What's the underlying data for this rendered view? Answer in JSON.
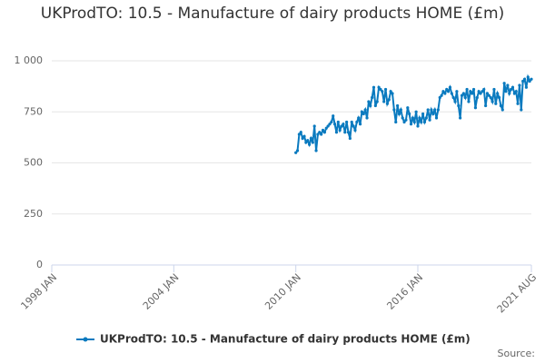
{
  "chart_data": {
    "type": "line",
    "title": "UKProdTO: 10.5 - Manufacture of dairy products HOME (£m)",
    "x": [
      "2010 JAN",
      "2010 FEB",
      "2010 MAR",
      "2010 APR",
      "2010 MAY",
      "2010 JUN",
      "2010 JUL",
      "2010 AUG",
      "2010 SEP",
      "2010 OCT",
      "2010 NOV",
      "2010 DEC",
      "2011 JAN",
      "2011 FEB",
      "2011 MAR",
      "2011 APR",
      "2011 MAY",
      "2011 JUN",
      "2011 JUL",
      "2011 AUG",
      "2011 SEP",
      "2011 OCT",
      "2011 NOV",
      "2011 DEC",
      "2012 JAN",
      "2012 FEB",
      "2012 MAR",
      "2012 APR",
      "2012 MAY",
      "2012 JUN",
      "2012 JUL",
      "2012 AUG",
      "2012 SEP",
      "2012 OCT",
      "2012 NOV",
      "2012 DEC",
      "2013 JAN",
      "2013 FEB",
      "2013 MAR",
      "2013 APR",
      "2013 MAY",
      "2013 JUN",
      "2013 JUL",
      "2013 AUG",
      "2013 SEP",
      "2013 OCT",
      "2013 NOV",
      "2013 DEC",
      "2014 JAN",
      "2014 FEB",
      "2014 MAR",
      "2014 APR",
      "2014 MAY",
      "2014 JUN",
      "2014 JUL",
      "2014 AUG",
      "2014 SEP",
      "2014 OCT",
      "2014 NOV",
      "2014 DEC",
      "2015 JAN",
      "2015 FEB",
      "2015 MAR",
      "2015 APR",
      "2015 MAY",
      "2015 JUN",
      "2015 JUL",
      "2015 AUG",
      "2015 SEP",
      "2015 OCT",
      "2015 NOV",
      "2015 DEC",
      "2016 JAN",
      "2016 FEB",
      "2016 MAR",
      "2016 APR",
      "2016 MAY",
      "2016 JUN",
      "2016 JUL",
      "2016 AUG",
      "2016 SEP",
      "2016 OCT",
      "2016 NOV",
      "2016 DEC",
      "2017 JAN",
      "2017 FEB",
      "2017 MAR",
      "2017 APR",
      "2017 MAY",
      "2017 JUN",
      "2017 JUL",
      "2017 AUG",
      "2017 SEP",
      "2017 OCT",
      "2017 NOV",
      "2017 DEC",
      "2018 JAN",
      "2018 FEB",
      "2018 MAR",
      "2018 APR",
      "2018 MAY",
      "2018 JUN",
      "2018 JUL",
      "2018 AUG",
      "2018 SEP",
      "2018 OCT",
      "2018 NOV",
      "2018 DEC",
      "2019 JAN",
      "2019 FEB",
      "2019 MAR",
      "2019 APR",
      "2019 MAY",
      "2019 JUN",
      "2019 JUL",
      "2019 AUG",
      "2019 SEP",
      "2019 OCT",
      "2019 NOV",
      "2019 DEC",
      "2020 JAN",
      "2020 FEB",
      "2020 MAR",
      "2020 APR",
      "2020 MAY",
      "2020 JUN",
      "2020 JUL",
      "2020 AUG",
      "2020 SEP",
      "2020 OCT",
      "2020 NOV",
      "2020 DEC",
      "2021 JAN",
      "2021 FEB",
      "2021 MAR",
      "2021 APR",
      "2021 MAY",
      "2021 JUN",
      "2021 JUL",
      "2021 AUG"
    ],
    "series": [
      {
        "name": "UKProdTO: 10.5 - Manufacture of dairy products HOME (£m)",
        "color": "#0a7abf",
        "values": [
          550,
          560,
          640,
          650,
          620,
          630,
          600,
          610,
          590,
          620,
          600,
          680,
          560,
          640,
          650,
          640,
          660,
          650,
          670,
          680,
          690,
          700,
          730,
          690,
          650,
          700,
          660,
          680,
          690,
          650,
          700,
          650,
          620,
          700,
          680,
          660,
          700,
          720,
          690,
          750,
          740,
          760,
          720,
          800,
          780,
          820,
          870,
          780,
          800,
          870,
          860,
          850,
          800,
          860,
          790,
          810,
          850,
          840,
          760,
          700,
          780,
          740,
          760,
          720,
          700,
          710,
          770,
          740,
          690,
          720,
          700,
          750,
          680,
          720,
          700,
          740,
          700,
          720,
          760,
          710,
          760,
          740,
          760,
          720,
          760,
          820,
          830,
          850,
          840,
          860,
          850,
          870,
          840,
          820,
          800,
          850,
          780,
          720,
          830,
          840,
          820,
          860,
          800,
          850,
          840,
          860,
          770,
          820,
          850,
          840,
          850,
          860,
          780,
          840,
          830,
          820,
          800,
          860,
          790,
          840,
          820,
          780,
          760,
          890,
          850,
          880,
          840,
          860,
          870,
          840,
          850,
          790,
          880,
          760,
          900,
          910,
          870,
          920,
          900,
          910
        ]
      }
    ],
    "xlim": [
      "1998 JAN",
      "2021 AUG"
    ],
    "xticks": [
      "1998 JAN",
      "2004 JAN",
      "2010 JAN",
      "2016 JAN",
      "2021 AUG"
    ],
    "ylim": [
      0,
      1000
    ],
    "yticks": [
      0,
      250,
      500,
      750,
      {
        "value": 1000,
        "label": "1 000"
      }
    ],
    "grid": true,
    "legend": "bottom",
    "source_label": "Source:"
  }
}
